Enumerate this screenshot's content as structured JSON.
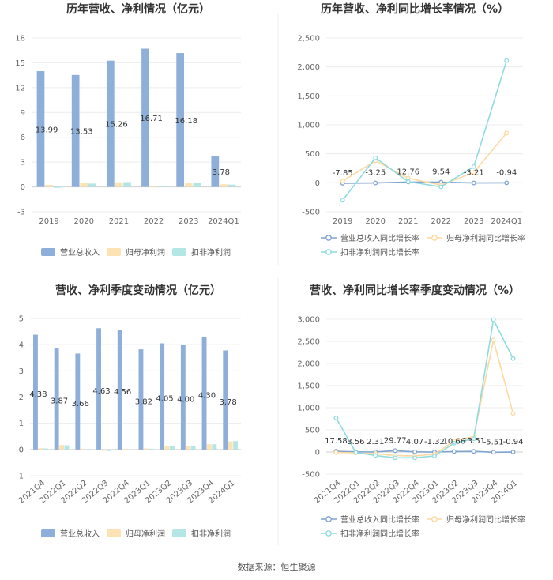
{
  "colors": {
    "revenue": "#8eafd9",
    "netprofit": "#fde2b3",
    "deducted": "#b4e6e6",
    "line_revenue": "#7fa3cf",
    "line_net": "#fcd9a0",
    "line_deducted": "#8fdbe0"
  },
  "source": "数据来源：恒生聚源",
  "legend_bar": [
    "营业总收入",
    "归母净利润",
    "扣非净利润"
  ],
  "legend_line": [
    "营业总收入同比增长率",
    "归母净利润同比增长率",
    "扣非净利润同比增长率"
  ],
  "chart_data": [
    {
      "type": "bar",
      "title": "历年营收、净利情况（亿元）",
      "categories": [
        "2019",
        "2020",
        "2021",
        "2022",
        "2023",
        "2024Q1"
      ],
      "ylim": [
        -3,
        18
      ],
      "yticks": [
        -3,
        0,
        3,
        6,
        9,
        12,
        15,
        18
      ],
      "grid": true,
      "legend": "bottom",
      "series": [
        {
          "name": "营业总收入",
          "values": [
            13.99,
            13.53,
            15.26,
            16.71,
            16.18,
            3.78
          ],
          "labels": [
            "13.99",
            "13.53",
            "15.26",
            "16.71",
            "16.18",
            "3.78"
          ]
        },
        {
          "name": "归母净利润",
          "values": [
            0.25,
            0.45,
            0.55,
            0.15,
            0.42,
            0.32
          ]
        },
        {
          "name": "扣非净利润",
          "values": [
            -0.1,
            0.4,
            0.58,
            0.1,
            0.45,
            0.28
          ]
        }
      ]
    },
    {
      "type": "line",
      "title": "历年营收、净利同比增长率情况（%）",
      "categories": [
        "2019",
        "2020",
        "2021",
        "2022",
        "2023",
        "2024Q1"
      ],
      "ylim": [
        -500,
        2500
      ],
      "yticks": [
        -500,
        0,
        500,
        1000,
        1500,
        2000,
        2500
      ],
      "ytick_labels": [
        "-500",
        "0",
        "500",
        "1,000",
        "1,500",
        "2,000",
        "2,500"
      ],
      "grid": true,
      "legend": "bottom",
      "series": [
        {
          "name": "营业总收入同比增长率",
          "values": [
            -7.85,
            -3.25,
            12.76,
            9.54,
            -3.21,
            -0.94
          ],
          "labels": [
            "-7.85",
            "-3.25",
            "12.76",
            "9.54",
            "-3.21",
            "-0.94"
          ]
        },
        {
          "name": "归母净利润同比增长率",
          "values": [
            30,
            380,
            80,
            -40,
            180,
            860
          ]
        },
        {
          "name": "扣非净利润同比增长率",
          "values": [
            -300,
            430,
            20,
            -70,
            280,
            2110
          ]
        }
      ]
    },
    {
      "type": "bar",
      "title": "营收、净利季度变动情况（亿元）",
      "categories": [
        "2021Q4",
        "2022Q1",
        "2022Q2",
        "2022Q3",
        "2022Q4",
        "2023Q1",
        "2023Q2",
        "2023Q3",
        "2023Q4",
        "2024Q1"
      ],
      "ylim": [
        -1,
        5
      ],
      "yticks": [
        -1,
        0,
        1,
        2,
        3,
        4,
        5
      ],
      "grid": true,
      "legend": "bottom",
      "series": [
        {
          "name": "营业总收入",
          "values": [
            4.38,
            3.87,
            3.66,
            4.63,
            4.56,
            3.82,
            4.05,
            4.0,
            4.3,
            3.78
          ],
          "labels": [
            "4.38",
            "3.87",
            "3.66",
            "4.63",
            "4.56",
            "3.82",
            "4.05",
            "4.00",
            "4.30",
            "3.78"
          ]
        },
        {
          "name": "归母净利润",
          "values": [
            0.05,
            0.17,
            0.03,
            -0.05,
            0.02,
            0.04,
            0.12,
            0.12,
            0.2,
            0.31
          ]
        },
        {
          "name": "扣非净利润",
          "values": [
            0.04,
            0.16,
            0.02,
            -0.06,
            0.01,
            0.03,
            0.13,
            0.13,
            0.2,
            0.32
          ]
        }
      ]
    },
    {
      "type": "line",
      "title": "营收、净利同比增长率季度变动情况（%）",
      "categories": [
        "2021Q4",
        "2022Q1",
        "2022Q2",
        "2022Q3",
        "2022Q4",
        "2023Q1",
        "2023Q2",
        "2023Q3",
        "2023Q4",
        "2024Q1"
      ],
      "ylim": [
        -500,
        3000
      ],
      "yticks": [
        -500,
        0,
        500,
        1000,
        1500,
        2000,
        2500,
        3000
      ],
      "ytick_labels": [
        "-500",
        "0",
        "500",
        "1,000",
        "1,500",
        "2,000",
        "2,500",
        "3,000"
      ],
      "grid": true,
      "legend": "bottom",
      "series": [
        {
          "name": "营业总收入同比增长率",
          "values": [
            17.58,
            3.56,
            2.31,
            29.77,
            4.07,
            -1.32,
            10.66,
            13.51,
            -5.51,
            -0.94
          ],
          "labels": [
            "17.58",
            "3.56",
            "2.31",
            "29.77",
            "4.07",
            "-1.32",
            "10.66",
            "13.51",
            "-5.51",
            "-0.94"
          ]
        },
        {
          "name": "归母净利润同比增长率",
          "values": [
            -10,
            -20,
            -40,
            -80,
            -90,
            -50,
            250,
            350,
            2530,
            870
          ]
        },
        {
          "name": "扣非净利润同比增长率",
          "values": [
            770,
            -10,
            -80,
            -130,
            -130,
            -90,
            200,
            300,
            2990,
            2110
          ]
        }
      ]
    }
  ]
}
